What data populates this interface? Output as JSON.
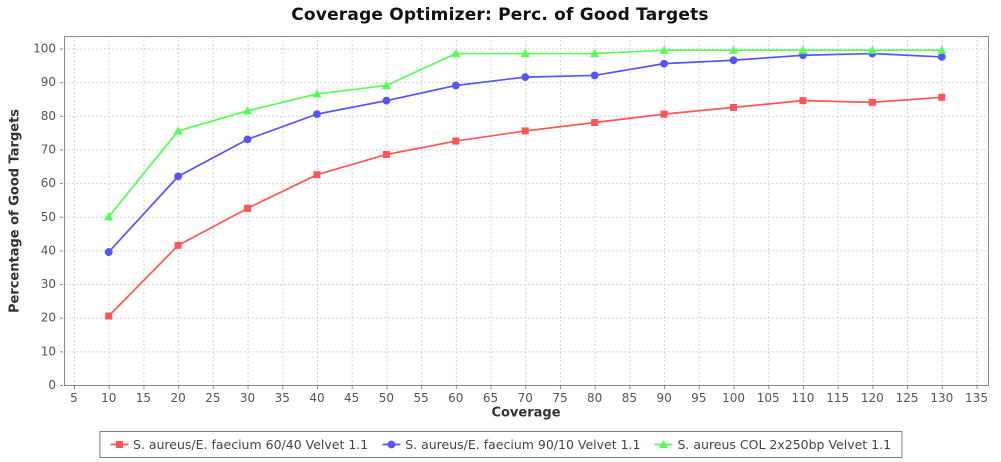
{
  "title": "Coverage Optimizer: Perc. of Good Targets",
  "chart_data": {
    "type": "line",
    "title": "Coverage Optimizer: Perc. of Good Targets",
    "xlabel": "Coverage",
    "ylabel": "Percentage of Good Targets",
    "xlim": [
      5,
      135
    ],
    "ylim": [
      0,
      100
    ],
    "xticks": [
      5,
      10,
      15,
      20,
      25,
      30,
      35,
      40,
      45,
      50,
      55,
      60,
      65,
      70,
      75,
      80,
      85,
      90,
      95,
      100,
      105,
      110,
      115,
      120,
      125,
      130,
      135
    ],
    "yticks": [
      0,
      10,
      20,
      30,
      40,
      50,
      60,
      70,
      80,
      90,
      100
    ],
    "grid": "dashed",
    "legend_position": "bottom",
    "x": [
      10,
      20,
      30,
      40,
      50,
      60,
      70,
      80,
      90,
      100,
      110,
      120,
      130
    ],
    "series": [
      {
        "name": "S. aureus/E. faecium 60/40 Velvet 1.1",
        "marker": "square",
        "color": "#FF5555",
        "values": [
          20.5,
          41.5,
          52.5,
          62.5,
          68.5,
          72.5,
          75.5,
          78,
          80.5,
          82.5,
          84.5,
          84,
          85.5
        ]
      },
      {
        "name": "S. aureus/E. faecium 90/10 Velvet 1.1",
        "marker": "circle",
        "color": "#5555FF",
        "values": [
          39.5,
          62,
          73,
          80.5,
          84.5,
          89,
          91.5,
          92,
          95.5,
          96.5,
          98,
          98.5,
          97.5
        ]
      },
      {
        "name": "S. aureus COL 2x250bp Velvet 1.1",
        "marker": "triangle",
        "color": "#55FF55",
        "values": [
          50,
          75.5,
          81.5,
          86.5,
          89,
          98.5,
          98.5,
          98.5,
          99.5,
          99.5,
          99.5,
          99.5,
          99.5
        ]
      }
    ],
    "colors": {
      "grid": "#d2d2da",
      "plot_border": "#8a8a8a",
      "tick_label": "#55555e",
      "axis_label": "#333333",
      "title": "#111111",
      "legend_border": "#7e7e7e"
    }
  }
}
